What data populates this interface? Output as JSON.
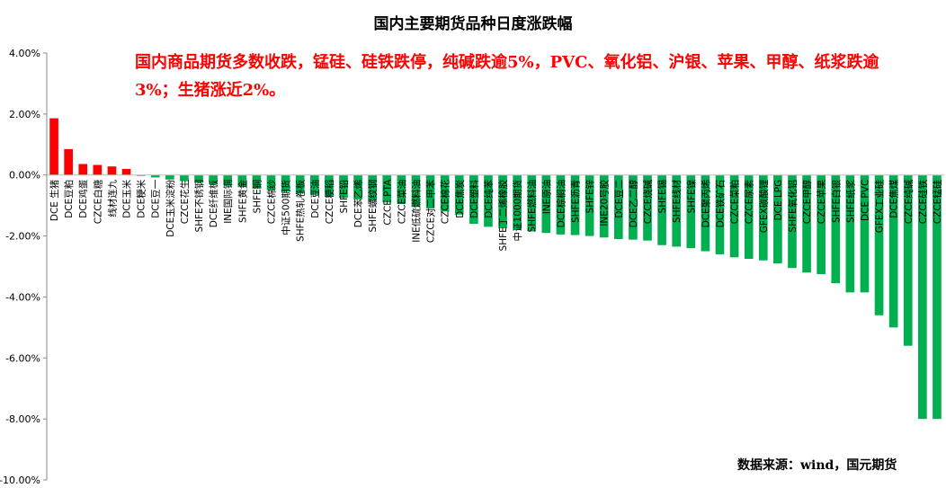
{
  "chart_data": {
    "type": "bar",
    "title": "国内主要期货品种日度涨跌幅",
    "annotation": "国内商品期货多数收跌，锰硅、硅铁跌停，纯碱跌逾5%，PVC、氧化铝、沪银、苹果、甲醇、纸浆跌逾3%；生猪涨近2%。",
    "source": "数据来源：wind，国元期货",
    "categories": [
      "DCE 生猪",
      "DCE豆粕",
      "DCE鸡蛋",
      "CZCE白糖",
      "线材连九",
      "DCE玉米",
      "DCE粳米",
      "DCE豆一",
      "DCE玉米淀粉",
      "CZCE花生",
      "SHFE不锈钢",
      "DCE纤维板",
      "INE国际铜",
      "SHFE黄金",
      "SHFE铜",
      "CZCE棉纱",
      "中证500期货",
      "SHFE热轧卷板",
      "DCE豆油",
      "CZCE粳稻",
      "SHFE铅",
      "DCE苯乙烯",
      "SHFE螺纹钢",
      "CZCE PTA",
      "CZCE菜油",
      "INE低硫燃料油",
      "CZCE对二甲苯",
      "CZCE棉花",
      "DCE焦炭",
      "DCE塑料",
      "DCE纯苯",
      "SHFE丁二烯橡胶",
      "中证1000期货",
      "SHFE燃料油",
      "INE原油",
      "DCE棕榈油",
      "SHFE沥青",
      "SHFE锌",
      "INE20号胶",
      "DCE豆二",
      "DCE乙二醇",
      "CZCE烧碱",
      "SHFE锡",
      "SHFE线材",
      "SHFE镍",
      "DCE聚丙烯",
      "DCE铁矿石",
      "CZCE菜粕",
      "CZCE尿素",
      "GFEX碳酸锂",
      "DCE LPG",
      "SHFE氧化铝",
      "CZCE甲醇",
      "CZCE苹果",
      "SHFE白银",
      "SHFE纸浆",
      "DCE PVC",
      "GFEX工业硅",
      "DCE焦煤",
      "CZCE纯碱",
      "CZCE硅铁",
      "CZCE锰硅"
    ],
    "values": [
      1.86,
      0.85,
      0.36,
      0.33,
      0.28,
      0.2,
      -0.03,
      -0.08,
      -0.15,
      -0.2,
      -0.25,
      -0.3,
      -0.35,
      -0.4,
      -0.45,
      -0.5,
      -0.55,
      -0.6,
      -0.65,
      -0.7,
      -0.75,
      -0.8,
      -0.85,
      -0.9,
      -0.95,
      -1.05,
      -1.1,
      -1.2,
      -1.3,
      -1.6,
      -1.7,
      -1.75,
      -1.8,
      -1.85,
      -1.9,
      -1.95,
      -1.97,
      -2.0,
      -2.05,
      -2.1,
      -2.12,
      -2.15,
      -2.3,
      -2.35,
      -2.4,
      -2.5,
      -2.6,
      -2.7,
      -2.75,
      -2.8,
      -2.9,
      -3.05,
      -3.2,
      -3.25,
      -3.55,
      -3.85,
      -3.85,
      -4.6,
      -5.0,
      -5.6,
      -8.0,
      -8.0
    ],
    "positive_color": "#ff0000",
    "negative_color": "#00b050",
    "ylim": [
      -10,
      4
    ],
    "yticks": [
      {
        "value": -10,
        "label": "-10.00%"
      },
      {
        "value": -8,
        "label": "-8.00%"
      },
      {
        "value": -6,
        "label": "-6.00%"
      },
      {
        "value": -4,
        "label": "-4.00%"
      },
      {
        "value": -2,
        "label": "-2.00%"
      },
      {
        "value": 0,
        "label": "0.00%"
      },
      {
        "value": 2,
        "label": "2.00%"
      },
      {
        "value": 4,
        "label": "4.00%"
      }
    ],
    "grid": false
  }
}
